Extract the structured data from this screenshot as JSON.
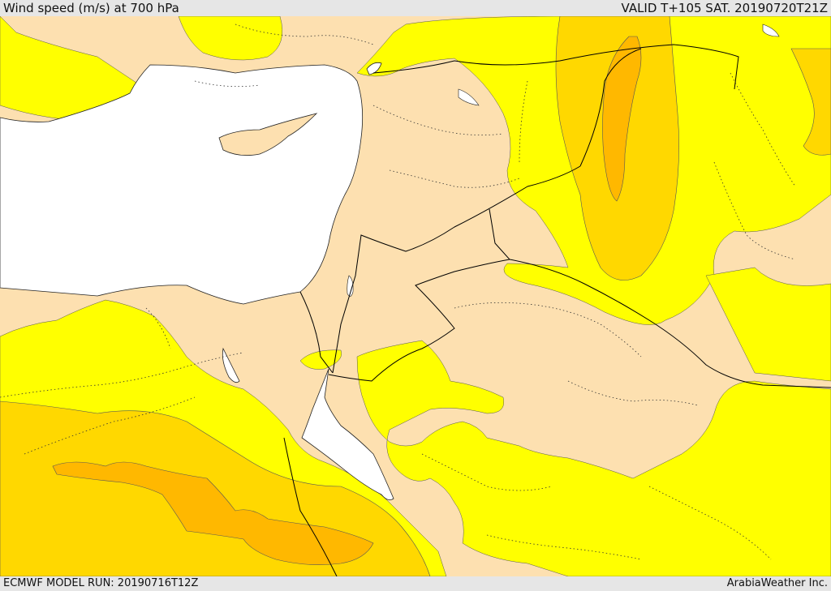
{
  "header": {
    "title": "Wind speed (m/s) at 700 hPa",
    "valid": "VALID T+105 SAT. 20190720T21Z"
  },
  "footer": {
    "run": "ECMWF MODEL RUN: 20190716T12Z",
    "credit": "ArabiaWeather Inc."
  },
  "colors": {
    "land_base": "#fde0b0",
    "band_low": "#ffff00",
    "band_mid": "#ffd800",
    "band_high": "#ffb800",
    "sea": "#ffffff",
    "border": "#000000"
  }
}
